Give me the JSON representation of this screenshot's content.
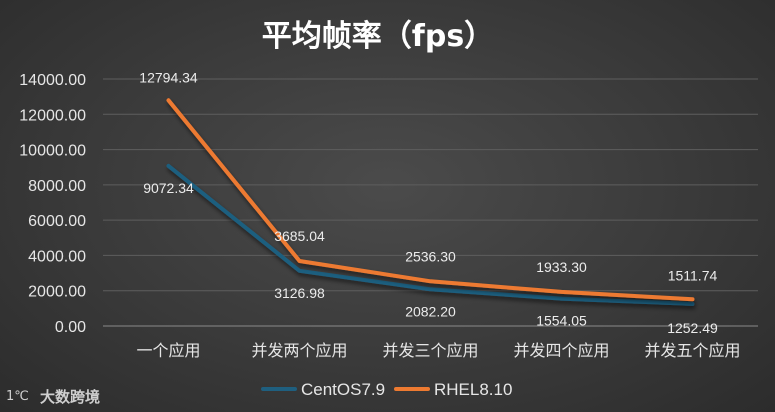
{
  "chart_data": {
    "type": "line",
    "title": "平均帧率（fps）",
    "categories": [
      "一个应用",
      "并发两个应用",
      "并发三个应用",
      "并发四个应用",
      "并发五个应用"
    ],
    "series": [
      {
        "name": "CentOS7.9",
        "values": [
          9072.34,
          3126.98,
          2082.2,
          1554.05,
          1252.49
        ],
        "labels": [
          "9072.34",
          "3126.98",
          "2082.20",
          "1554.05",
          "1252.49"
        ],
        "color": "#1f5f7f"
      },
      {
        "name": "RHEL8.10",
        "values": [
          12794.34,
          3685.04,
          2536.3,
          1933.3,
          1511.74
        ],
        "labels": [
          "12794.34",
          "3685.04",
          "2536.30",
          "1933.30",
          "1511.74"
        ],
        "color": "#ed7a31"
      }
    ],
    "ylim": [
      0,
      14000
    ],
    "yticks": [
      "0.00",
      "2000.00",
      "4000.00",
      "6000.00",
      "8000.00",
      "10000.00",
      "12000.00",
      "14000.00"
    ],
    "grid": true,
    "legend_position": "bottom"
  },
  "watermark": {
    "text": "大数跨境",
    "logo_text": "1℃"
  }
}
